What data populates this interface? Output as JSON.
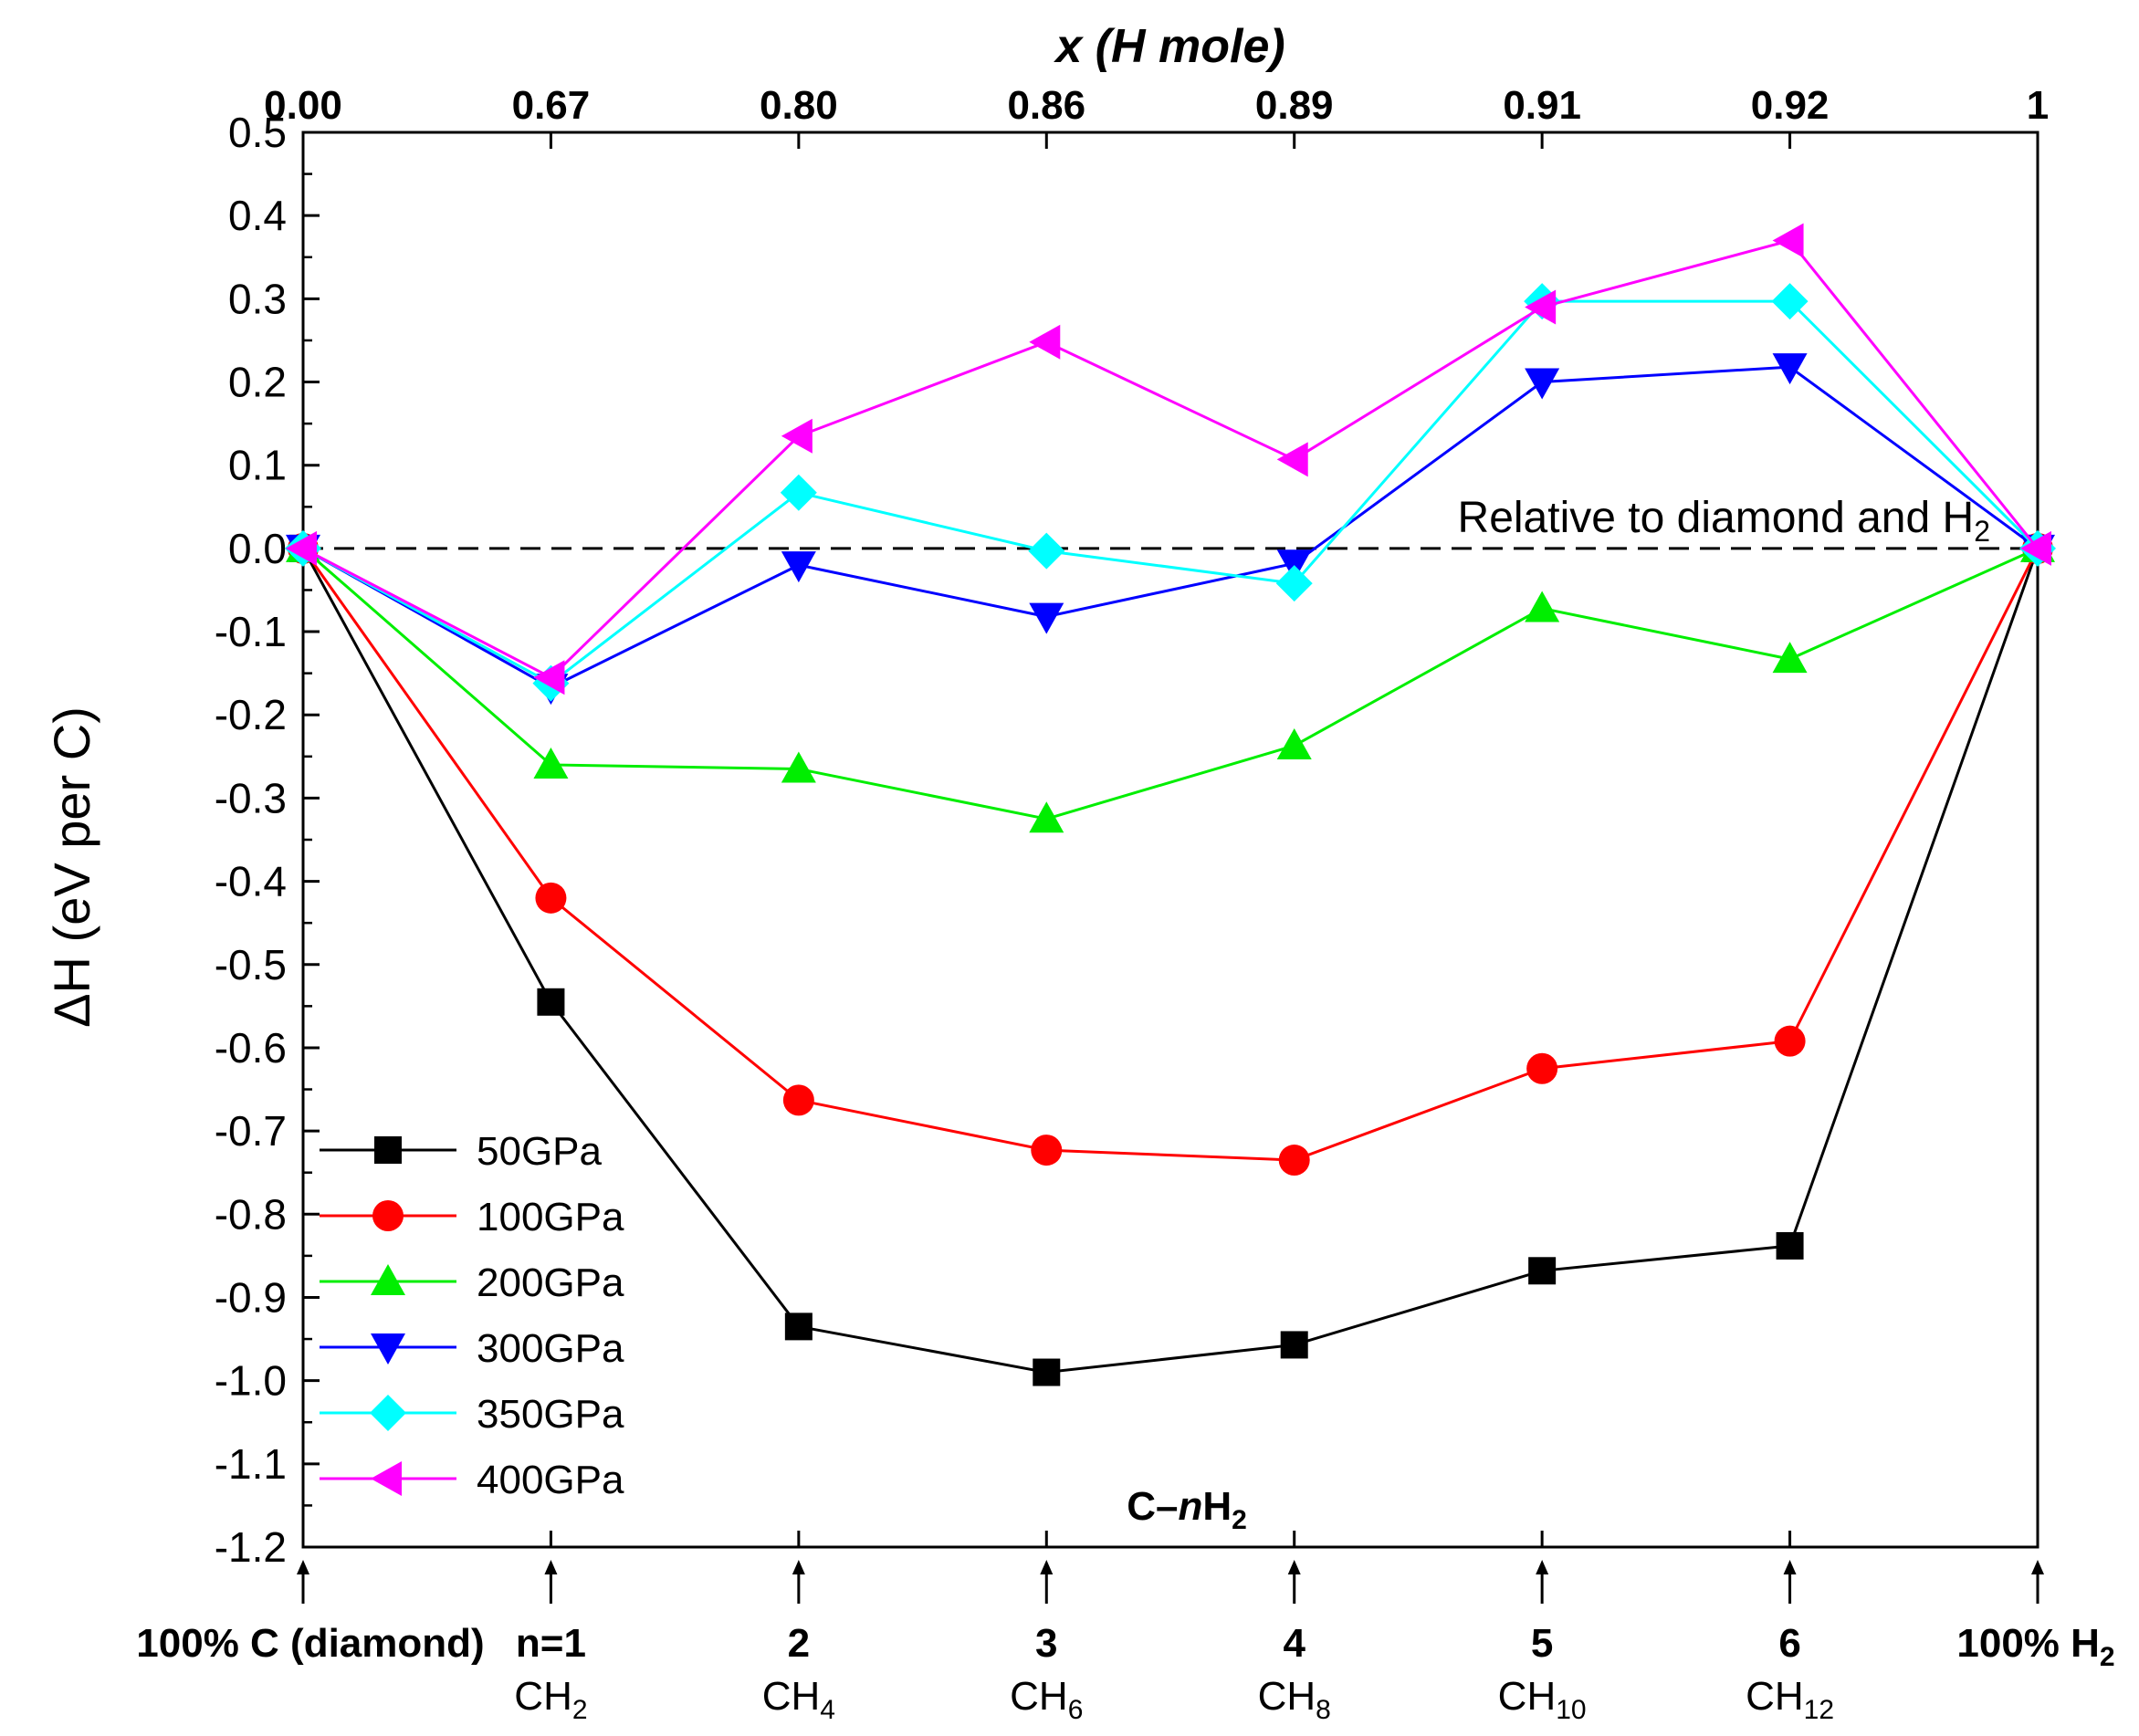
{
  "chart_data": {
    "type": "line",
    "title": "",
    "top_axis_title": "x (H mole)",
    "ylabel": "ΔH (eV per C)",
    "ylim": [
      -1.2,
      0.5
    ],
    "yticks": [
      "0.5",
      "0.4",
      "0.3",
      "0.2",
      "0.1",
      "0.0",
      "-0.1",
      "-0.2",
      "-0.3",
      "-0.4",
      "-0.5",
      "-0.6",
      "-0.7",
      "-0.8",
      "-0.9",
      "-1.0",
      "-1.1",
      "-1.2"
    ],
    "top_ticks": [
      "0.00",
      "0.67",
      "0.80",
      "0.86",
      "0.89",
      "0.91",
      "0.92",
      "1"
    ],
    "bottom_ticks": [
      {
        "main": "100% C (diamond)",
        "sub": ""
      },
      {
        "main": "n=1",
        "sub": "CH",
        "subscript": "2"
      },
      {
        "main": "2",
        "sub": "CH",
        "subscript": "4"
      },
      {
        "main": "3",
        "sub": "CH",
        "subscript": "6"
      },
      {
        "main": "4",
        "sub": "CH",
        "subscript": "8"
      },
      {
        "main": "5",
        "sub": "CH",
        "subscript": "10"
      },
      {
        "main": "6",
        "sub": "CH",
        "subscript": "12"
      },
      {
        "main": "100% H",
        "main_subscript": "2",
        "sub": ""
      }
    ],
    "reference_line_label": "Relative to diamond and H",
    "reference_line_subscript": "2",
    "inner_label": "C–",
    "inner_label_italic": "n",
    "inner_label_rest": "H",
    "inner_label_subscript": "2",
    "series": [
      {
        "name": "50GPa",
        "color": "#000000",
        "marker": "square",
        "values": [
          0,
          -0.545,
          -0.935,
          -0.99,
          -0.957,
          -0.868,
          -0.838,
          0
        ]
      },
      {
        "name": "100GPa",
        "color": "#ff0000",
        "marker": "circle",
        "values": [
          0,
          -0.42,
          -0.663,
          -0.723,
          -0.735,
          -0.625,
          -0.592,
          0
        ]
      },
      {
        "name": "200GPa",
        "color": "#00ee00",
        "marker": "triangle-up",
        "values": [
          0,
          -0.26,
          -0.265,
          -0.325,
          -0.237,
          -0.072,
          -0.133,
          0
        ]
      },
      {
        "name": "300GPa",
        "color": "#0000ff",
        "marker": "triangle-down",
        "values": [
          0,
          -0.167,
          -0.02,
          -0.082,
          -0.018,
          0.2,
          0.218,
          0
        ]
      },
      {
        "name": "350GPa",
        "color": "#00ffff",
        "marker": "diamond",
        "values": [
          0,
          -0.162,
          0.067,
          -0.003,
          -0.042,
          0.297,
          0.297,
          0
        ]
      },
      {
        "name": "400GPa",
        "color": "#ff00ff",
        "marker": "triangle-left",
        "values": [
          0,
          -0.155,
          0.135,
          0.248,
          0.107,
          0.29,
          0.37,
          0
        ]
      }
    ]
  }
}
